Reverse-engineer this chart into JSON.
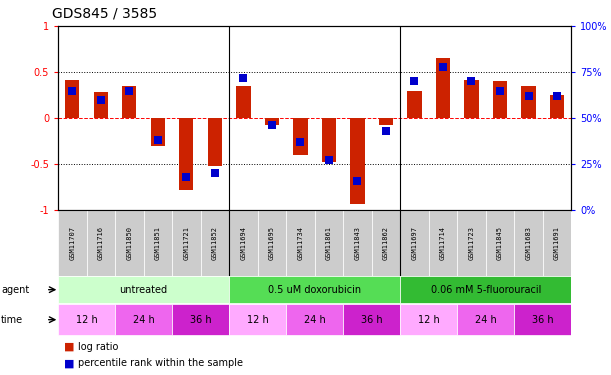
{
  "title": "GDS845 / 3585",
  "samples": [
    "GSM11707",
    "GSM11716",
    "GSM11850",
    "GSM11851",
    "GSM11721",
    "GSM11852",
    "GSM11694",
    "GSM11695",
    "GSM11734",
    "GSM11861",
    "GSM11843",
    "GSM11862",
    "GSM11697",
    "GSM11714",
    "GSM11723",
    "GSM11845",
    "GSM11683",
    "GSM11691"
  ],
  "log_ratio": [
    0.42,
    0.28,
    0.35,
    -0.3,
    -0.78,
    -0.52,
    0.35,
    -0.07,
    -0.4,
    -0.48,
    -0.93,
    -0.07,
    0.3,
    0.65,
    0.42,
    0.4,
    0.35,
    0.25
  ],
  "percentile": [
    65,
    60,
    65,
    38,
    18,
    20,
    72,
    46,
    37,
    27,
    16,
    43,
    70,
    78,
    70,
    65,
    62,
    62
  ],
  "bar_color": "#cc2200",
  "dot_color": "#0000cc",
  "agent_groups": [
    {
      "label": "untreated",
      "start": 0,
      "end": 6,
      "color": "#ccffcc"
    },
    {
      "label": "0.5 uM doxorubicin",
      "start": 6,
      "end": 12,
      "color": "#55dd55"
    },
    {
      "label": "0.06 mM 5-fluorouracil",
      "start": 12,
      "end": 18,
      "color": "#33bb33"
    }
  ],
  "time_groups": [
    {
      "label": "12 h",
      "start": 0,
      "end": 2,
      "color": "#ffaaff"
    },
    {
      "label": "24 h",
      "start": 2,
      "end": 4,
      "color": "#ee66ee"
    },
    {
      "label": "36 h",
      "start": 4,
      "end": 6,
      "color": "#cc22cc"
    },
    {
      "label": "12 h",
      "start": 6,
      "end": 8,
      "color": "#ffaaff"
    },
    {
      "label": "24 h",
      "start": 8,
      "end": 10,
      "color": "#ee66ee"
    },
    {
      "label": "36 h",
      "start": 10,
      "end": 12,
      "color": "#cc22cc"
    },
    {
      "label": "12 h",
      "start": 12,
      "end": 14,
      "color": "#ffaaff"
    },
    {
      "label": "24 h",
      "start": 14,
      "end": 16,
      "color": "#ee66ee"
    },
    {
      "label": "36 h",
      "start": 16,
      "end": 18,
      "color": "#cc22cc"
    }
  ],
  "sample_bg": "#cccccc",
  "bar_width": 0.5,
  "dot_size": 30,
  "tick_fontsize": 7,
  "sample_fontsize": 5,
  "label_fontsize": 7,
  "title_fontsize": 10,
  "group_sep": [
    6,
    12
  ]
}
